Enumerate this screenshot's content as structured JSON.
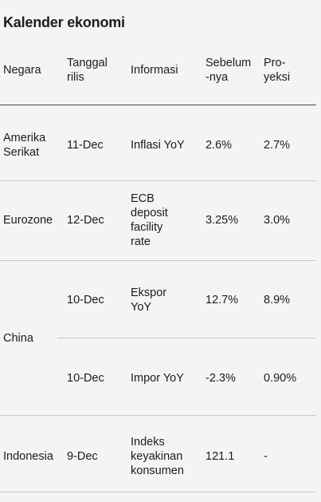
{
  "title": "Kalender ekonomi",
  "headers": {
    "negara": "Negara",
    "tanggal": "Tanggal\nrilis",
    "informasi": "Informasi",
    "sebelumnya": "Sebelum\n-nya",
    "proyeksi": "Pro-\nyeksi"
  },
  "rows": [
    {
      "negara": "Amerika\nSerikat",
      "tanggal": "11-Dec",
      "informasi": "Inflasi YoY",
      "sebelumnya": "2.6%",
      "proyeksi": "2.7%"
    },
    {
      "negara": "Eurozone",
      "tanggal": "12-Dec",
      "informasi": "ECB\ndeposit\nfacility\nrate",
      "sebelumnya": "3.25%",
      "proyeksi": "3.0%"
    },
    {
      "negara": "China",
      "tanggal": "10-Dec",
      "informasi": "Ekspor\nYoY",
      "sebelumnya": "12.7%",
      "proyeksi": "8.9%"
    },
    {
      "negara": "",
      "tanggal": "10-Dec",
      "informasi": "Impor YoY",
      "sebelumnya": "-2.3%",
      "proyeksi": "0.90%"
    },
    {
      "negara": "Indonesia",
      "tanggal": "9-Dec",
      "informasi": "Indeks\nkeyakinan\nkonsumen",
      "sebelumnya": "121.1",
      "proyeksi": "-"
    }
  ]
}
